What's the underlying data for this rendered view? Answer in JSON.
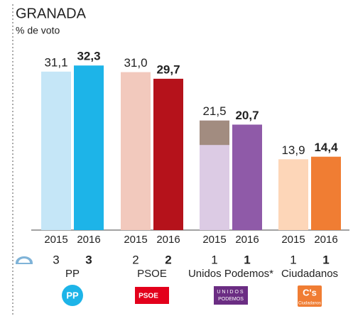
{
  "chart_data": {
    "type": "bar",
    "title": "GRANADA",
    "subtitle": "% de voto",
    "categories": [
      "PP",
      "PSOE",
      "Unidos Podemos*",
      "Ciudadanos"
    ],
    "series": [
      {
        "name": "2015",
        "colors": [
          "#c5e6f7",
          "#f2c9bd",
          "#dccbe4",
          "#fdd6b8"
        ],
        "values": [
          31.1,
          31.0,
          21.5,
          13.9
        ],
        "value_labels": [
          "31,1",
          "31,0",
          "21,5",
          "13,9"
        ],
        "seats": [
          3,
          2,
          1,
          1
        ]
      },
      {
        "name": "2016",
        "colors": [
          "#1db4e8",
          "#b5121b",
          "#8f5aa8",
          "#f07d33"
        ],
        "values": [
          32.3,
          29.7,
          20.7,
          14.4
        ],
        "value_labels": [
          "32,3",
          "29,7",
          "20,7",
          "14,4"
        ],
        "seats": [
          3,
          2,
          1,
          1
        ]
      }
    ],
    "top_segment_2015": {
      "category": 2,
      "value": 4.8,
      "color": "#a28c80"
    },
    "logos": [
      [
        "PP"
      ],
      [
        "PSOE"
      ],
      [
        "UNIDOS",
        "PODEMOS"
      ],
      [
        "C's",
        "Ciudadanos"
      ]
    ],
    "logo_colors": [
      "#1db4e8",
      "#e3001b",
      "#6b2d83",
      "#f07d33"
    ],
    "ylim": [
      0,
      40
    ]
  }
}
